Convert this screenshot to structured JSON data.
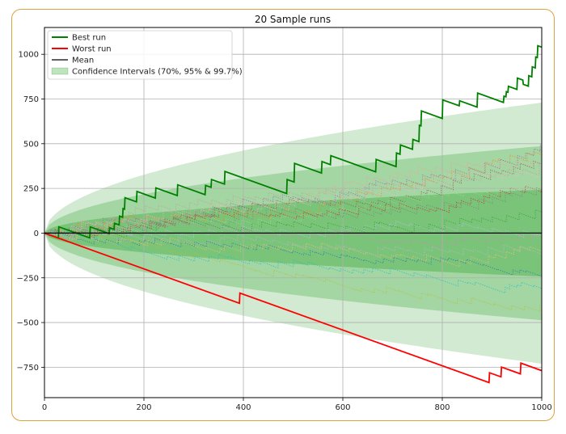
{
  "chart_data": {
    "type": "line",
    "title": "20 Sample runs",
    "xlabel": "",
    "ylabel": "",
    "xlim": [
      0,
      1000
    ],
    "ylim": [
      -920,
      1150
    ],
    "grid": true,
    "legend_position": "top-left",
    "x_ticks": [
      0,
      200,
      400,
      600,
      800,
      1000
    ],
    "y_ticks": [
      -750,
      -500,
      -250,
      0,
      250,
      500,
      750,
      1000
    ],
    "legend": [
      {
        "label": "Best run",
        "kind": "line",
        "color": "#008000"
      },
      {
        "label": "Worst run",
        "kind": "line",
        "color": "#ff0000"
      },
      {
        "label": "Mean",
        "kind": "line",
        "color": "#000000"
      },
      {
        "label": "Confidence Intervals (70%, 95% & 99.7%)",
        "kind": "patch",
        "color": "#2ca02c"
      }
    ],
    "confidence_bands": [
      {
        "level": "99.7%",
        "end_upper": 730,
        "end_lower": -730,
        "color": "#2ca02c",
        "opacity": 0.22
      },
      {
        "level": "95%",
        "end_upper": 487,
        "end_lower": -487,
        "color": "#2ca02c",
        "opacity": 0.28
      },
      {
        "level": "70%",
        "end_upper": 243,
        "end_lower": -243,
        "color": "#2ca02c",
        "opacity": 0.34
      }
    ],
    "series": [
      {
        "name": "Best run",
        "color": "#008000",
        "values": [
          [
            0,
            0
          ],
          [
            28,
            -28
          ],
          [
            29,
            35
          ],
          [
            91,
            -27
          ],
          [
            92,
            35
          ],
          [
            130,
            -3
          ],
          [
            131,
            30
          ],
          [
            140,
            21
          ],
          [
            141,
            55
          ],
          [
            150,
            46
          ],
          [
            151,
            95
          ],
          [
            157,
            89
          ],
          [
            158,
            137
          ],
          [
            161,
            134
          ],
          [
            162,
            198
          ],
          [
            185,
            175
          ],
          [
            186,
            233
          ],
          [
            223,
            196
          ],
          [
            224,
            253
          ],
          [
            267,
            210
          ],
          [
            268,
            270
          ],
          [
            323,
            215
          ],
          [
            324,
            267
          ],
          [
            335,
            256
          ],
          [
            336,
            300
          ],
          [
            362,
            274
          ],
          [
            363,
            345
          ],
          [
            487,
            221
          ],
          [
            488,
            300
          ],
          [
            502,
            286
          ],
          [
            503,
            390
          ],
          [
            557,
            336
          ],
          [
            558,
            400
          ],
          [
            575,
            383
          ],
          [
            576,
            433
          ],
          [
            666,
            343
          ],
          [
            667,
            412
          ],
          [
            707,
            372
          ],
          [
            708,
            448
          ],
          [
            715,
            441
          ],
          [
            716,
            493
          ],
          [
            740,
            469
          ],
          [
            741,
            524
          ],
          [
            753,
            512
          ],
          [
            754,
            603
          ],
          [
            757,
            600
          ],
          [
            758,
            683
          ],
          [
            800,
            641
          ],
          [
            801,
            745
          ],
          [
            834,
            712
          ],
          [
            835,
            740
          ],
          [
            870,
            705
          ],
          [
            871,
            783
          ],
          [
            923,
            731
          ],
          [
            924,
            766
          ],
          [
            928,
            762
          ],
          [
            929,
            791
          ],
          [
            932,
            788
          ],
          [
            933,
            821
          ],
          [
            950,
            804
          ],
          [
            951,
            867
          ],
          [
            962,
            856
          ],
          [
            963,
            832
          ],
          [
            973,
            822
          ],
          [
            974,
            880
          ],
          [
            980,
            874
          ],
          [
            981,
            930
          ],
          [
            987,
            924
          ],
          [
            988,
            985
          ],
          [
            991,
            982
          ],
          [
            992,
            1048
          ],
          [
            1000,
            1040
          ]
        ]
      },
      {
        "name": "Worst run",
        "color": "#ff0000",
        "values": [
          [
            0,
            0
          ],
          [
            392,
            -392
          ],
          [
            393,
            -335
          ],
          [
            894,
            -836
          ],
          [
            895,
            -781
          ],
          [
            918,
            -804
          ],
          [
            919,
            -749
          ],
          [
            957,
            -787
          ],
          [
            958,
            -727
          ],
          [
            1000,
            -769
          ]
        ]
      },
      {
        "name": "Mean",
        "color": "#000000",
        "values": [
          [
            0,
            0
          ],
          [
            1000,
            0
          ]
        ]
      }
    ]
  }
}
